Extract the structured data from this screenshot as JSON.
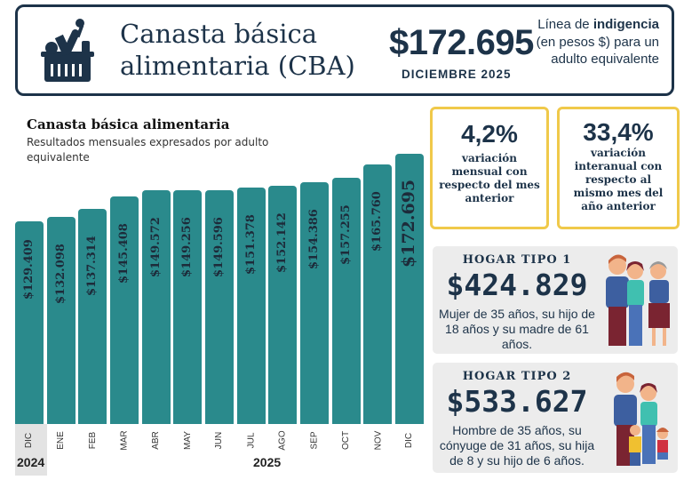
{
  "header": {
    "title_line1": "Canasta básica",
    "title_line2": "alimentaria (CBA)",
    "value": "$172.695",
    "date": "DICIEMBRE 2025",
    "desc_pre": "Línea de",
    "desc_bold": "indigencia",
    "desc_post": "(en pesos $) para un adulto equivalente"
  },
  "chart_data": {
    "type": "bar",
    "title": "Canasta básica alimentaria",
    "subtitle": "Resultados mensuales expresados por adulto equivalente",
    "categories": [
      "DIC",
      "ENE",
      "FEB",
      "MAR",
      "ABR",
      "MAY",
      "JUN",
      "JUL",
      "AGO",
      "SEP",
      "OCT",
      "NOV",
      "DIC"
    ],
    "years": [
      {
        "label": "2024",
        "months": 1
      },
      {
        "label": "2025",
        "months": 12
      }
    ],
    "values": [
      129409,
      132098,
      137314,
      145408,
      149572,
      149256,
      149596,
      151378,
      152142,
      154386,
      157255,
      165760,
      172695
    ],
    "labels": [
      "$129.409",
      "$132.098",
      "$137.314",
      "$145.408",
      "$149.572",
      "$149.256",
      "$149.596",
      "$151.378",
      "$152.142",
      "$154.386",
      "$157.255",
      "$165.760",
      "$172.695"
    ],
    "xlabel": "",
    "ylabel": "",
    "ylim": [
      0,
      172695
    ],
    "color": "#2a8a8c"
  },
  "variations": [
    {
      "value": "4,2%",
      "text": "variación mensual con respecto del mes anterior"
    },
    {
      "value": "33,4%",
      "text": "variación interanual con respecto al mismo mes del año anterior"
    }
  ],
  "hogares": [
    {
      "title": "HOGAR TIPO 1",
      "value": "$424.829",
      "desc": "Mujer de 35 años, su hijo de 18 años y su madre de 61 años."
    },
    {
      "title": "HOGAR TIPO 2",
      "value": "$533.627",
      "desc": "Hombre de 35 años, su cónyuge de 31 años, su hija de 8 y su hijo de 6 años."
    }
  ],
  "colors": {
    "navy": "#1d3349",
    "teal": "#2a8a8c",
    "yellow": "#f0c94a",
    "panel": "#ececec"
  }
}
